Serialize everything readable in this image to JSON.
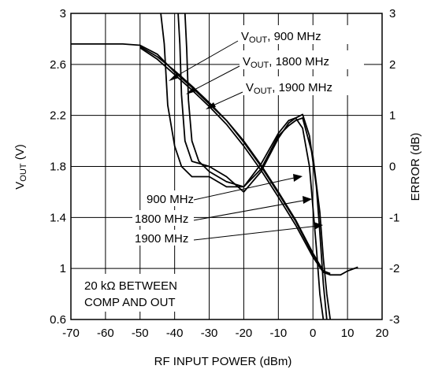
{
  "chart_data": {
    "type": "line",
    "xlabel": "RF INPUT POWER (dBm)",
    "ylabel_left": {
      "main": "V",
      "sub": "OUT",
      "unit": " (V)"
    },
    "ylabel_right": "ERROR (dB)",
    "x_ticks": [
      -70,
      -60,
      -50,
      -40,
      -30,
      -20,
      -10,
      0,
      10,
      20
    ],
    "y_left_ticks": [
      "3",
      "2.6",
      "2.2",
      "1.8",
      "1.4",
      "1",
      "0.6"
    ],
    "y_right_ticks": [
      "3",
      "2",
      "1",
      "0",
      "-1",
      "-2",
      "-3"
    ],
    "xlim": [
      -70,
      20
    ],
    "ylim_left": [
      0.6,
      3.0
    ],
    "ylim_right": [
      -3,
      3
    ],
    "grid": true,
    "annotation_box": [
      "20 kΩ BETWEEN",
      "COMP AND OUT"
    ],
    "callouts": {
      "vout": [
        {
          "label_main": "V",
          "label_sub": "OUT",
          "label_rest": ", 900 MHz"
        },
        {
          "label_main": "V",
          "label_sub": "OUT",
          "label_rest": ", 1800 MHz"
        },
        {
          "label_main": "V",
          "label_sub": "OUT",
          "label_rest": ", 1900 MHz"
        }
      ],
      "error": [
        "900 MHz",
        "1800 MHz",
        "1900 MHz"
      ]
    },
    "series": [
      {
        "axis": "left",
        "x": [
          -70,
          -60,
          -55,
          -50,
          -45,
          -40,
          -35,
          -30,
          -25,
          -20,
          -15,
          -10,
          -5,
          0,
          3,
          5,
          8,
          10,
          13
        ],
        "y": [
          2.76,
          2.76,
          2.76,
          2.75,
          2.68,
          2.54,
          2.42,
          2.29,
          2.16,
          2.0,
          1.81,
          1.6,
          1.38,
          1.12,
          0.98,
          0.95,
          0.95,
          0.98,
          1.01
        ]
      },
      {
        "axis": "left",
        "x": [
          -50,
          -45,
          -40,
          -35,
          -30,
          -25,
          -20,
          -15,
          -10,
          -5,
          0,
          3,
          5
        ],
        "y": [
          2.73,
          2.64,
          2.52,
          2.4,
          2.27,
          2.13,
          1.96,
          1.77,
          1.56,
          1.34,
          1.09,
          0.97,
          0.95
        ]
      },
      {
        "axis": "left",
        "x": [
          -50,
          -45,
          -40,
          -35,
          -30,
          -25,
          -20,
          -15,
          -10,
          -5,
          0,
          3,
          5
        ],
        "y": [
          2.74,
          2.66,
          2.55,
          2.43,
          2.3,
          2.16,
          1.99,
          1.8,
          1.59,
          1.37,
          1.11,
          0.98,
          0.96
        ]
      },
      {
        "axis": "right",
        "x": [
          -44,
          -43,
          -42,
          -40,
          -38,
          -35,
          -30,
          -25,
          -20,
          -15,
          -10,
          -7,
          -5,
          -3,
          -1,
          0,
          1,
          2,
          3
        ],
        "y": [
          3,
          2.4,
          1.2,
          0.4,
          0.0,
          -0.2,
          -0.2,
          -0.4,
          -0.4,
          0.05,
          0.65,
          0.9,
          0.95,
          0.75,
          0.0,
          -0.8,
          -1.6,
          -2.5,
          -3.0
        ]
      },
      {
        "axis": "right",
        "x": [
          -39,
          -38.5,
          -38,
          -37,
          -35,
          -30,
          -25,
          -20,
          -15,
          -10,
          -7,
          -5,
          -3,
          -1,
          1,
          2,
          3,
          4
        ],
        "y": [
          3,
          2.4,
          1.4,
          0.5,
          0.1,
          0.0,
          -0.2,
          -0.5,
          -0.1,
          0.55,
          0.85,
          0.95,
          1.02,
          0.6,
          -0.4,
          -1.3,
          -2.3,
          -3.0
        ]
      },
      {
        "axis": "right",
        "x": [
          -37,
          -36.5,
          -36,
          -35,
          -33,
          -30,
          -25,
          -20,
          -15,
          -10,
          -7,
          -5,
          -3,
          0,
          2,
          3,
          4,
          5
        ],
        "y": [
          3,
          2.3,
          1.3,
          0.5,
          0.1,
          -0.1,
          -0.3,
          -0.4,
          -0.05,
          0.6,
          0.8,
          0.9,
          0.95,
          0.2,
          -0.9,
          -1.8,
          -2.5,
          -3.0
        ]
      }
    ]
  }
}
